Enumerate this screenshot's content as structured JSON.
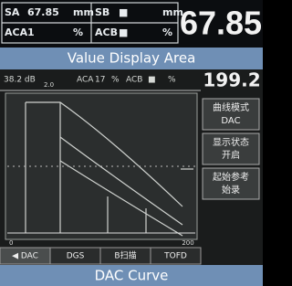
{
  "top_panel": {
    "row1": [
      "SA",
      "67.85",
      "mm",
      "SB",
      "■",
      "mm"
    ],
    "row2": [
      "ACA",
      "1",
      "%",
      "ACB",
      "■",
      "%"
    ],
    "big_value": "67.85"
  },
  "banner": "Value Display Area",
  "screen": {
    "status": [
      "38.2 dB",
      "2.0",
      "ACA",
      "17",
      "%",
      "ACB",
      "■",
      "%"
    ],
    "big_value": "199.2",
    "menu": [
      {
        "title": "曲线模式",
        "value": "DAC"
      },
      {
        "title": "显示状态",
        "value": "开启"
      },
      {
        "title": "起始参考",
        "value": "始录"
      }
    ],
    "axis_labels": [
      "0",
      "200"
    ],
    "tabs": [
      "◀ DAC",
      "DGS",
      "B扫描",
      "TOFD"
    ]
  },
  "caption": "DAC Curve"
}
